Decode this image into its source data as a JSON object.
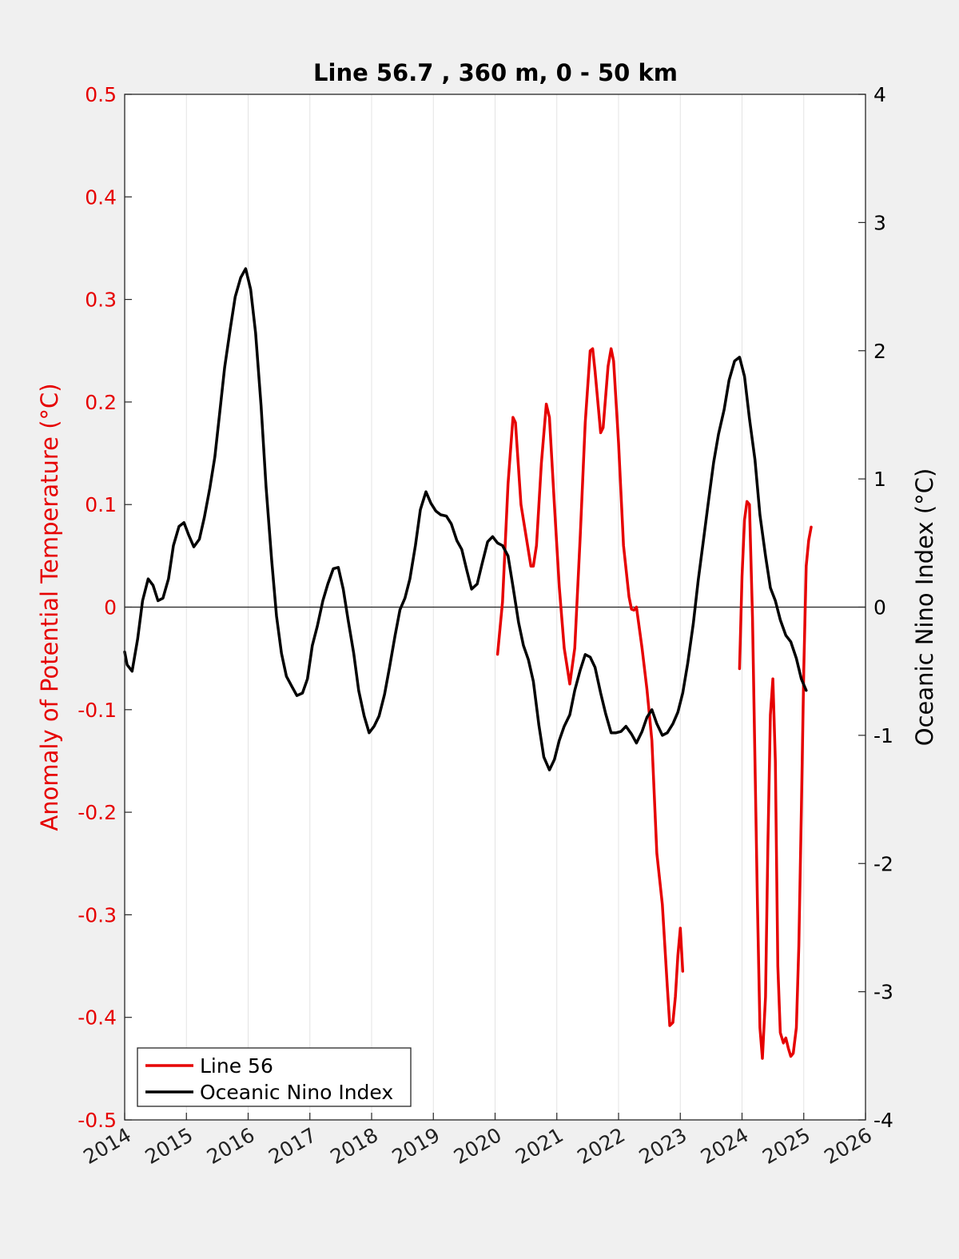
{
  "chart_data": {
    "type": "line",
    "title": "Line 56.7 , 360 m, 0 - 50 km",
    "ylabel_left": "Anomaly of Potential Temperature (°C)",
    "ylabel_right": "Oceanic Nino Index (°C)",
    "xlabel": "",
    "xlim": [
      2014,
      2026
    ],
    "ylim_left": [
      -0.5,
      0.5
    ],
    "ylim_right": [
      -4,
      4
    ],
    "xticks": [
      "2014",
      "2015",
      "2016",
      "2017",
      "2018",
      "2019",
      "2020",
      "2021",
      "2022",
      "2023",
      "2024",
      "2025",
      "2026"
    ],
    "yticks_left": [
      "0.5",
      "0.4",
      "0.3",
      "0.2",
      "0.1",
      "0",
      "-0.1",
      "-0.2",
      "-0.3",
      "-0.4",
      "-0.5"
    ],
    "yticks_right": [
      "4",
      "3",
      "2",
      "1",
      "0",
      "-1",
      "-2",
      "-3",
      "-4"
    ],
    "grid": "vertical",
    "zero_line": true,
    "legend_position": "bottom-left",
    "colors": {
      "line56": "#e60000",
      "oni": "#000000",
      "left_axis": "#e60000",
      "background": "#f0f0f0",
      "plot_bg": "#ffffff"
    },
    "series": [
      {
        "name": "Line 56",
        "axis": "left",
        "segments": [
          [
            [
              2020.04,
              -0.046
            ],
            [
              2020.12,
              0.005
            ],
            [
              2020.21,
              0.12
            ],
            [
              2020.29,
              0.185
            ],
            [
              2020.33,
              0.18
            ],
            [
              2020.42,
              0.1
            ],
            [
              2020.5,
              0.07
            ],
            [
              2020.58,
              0.04
            ],
            [
              2020.62,
              0.04
            ],
            [
              2020.67,
              0.06
            ],
            [
              2020.75,
              0.14
            ],
            [
              2020.83,
              0.198
            ],
            [
              2020.88,
              0.185
            ],
            [
              2020.96,
              0.1
            ],
            [
              2021.04,
              0.02
            ],
            [
              2021.12,
              -0.04
            ],
            [
              2021.21,
              -0.075
            ],
            [
              2021.29,
              -0.04
            ],
            [
              2021.38,
              0.07
            ],
            [
              2021.46,
              0.18
            ],
            [
              2021.54,
              0.25
            ],
            [
              2021.58,
              0.252
            ],
            [
              2021.62,
              0.23
            ],
            [
              2021.71,
              0.17
            ],
            [
              2021.75,
              0.175
            ],
            [
              2021.83,
              0.235
            ],
            [
              2021.88,
              0.252
            ],
            [
              2021.92,
              0.24
            ],
            [
              2022.0,
              0.16
            ],
            [
              2022.08,
              0.06
            ],
            [
              2022.17,
              0.01
            ],
            [
              2022.21,
              -0.002
            ],
            [
              2022.25,
              -0.003
            ],
            [
              2022.29,
              0.0
            ],
            [
              2022.38,
              -0.04
            ],
            [
              2022.46,
              -0.08
            ],
            [
              2022.54,
              -0.13
            ],
            [
              2022.62,
              -0.24
            ],
            [
              2022.71,
              -0.29
            ],
            [
              2022.79,
              -0.37
            ],
            [
              2022.83,
              -0.408
            ],
            [
              2022.88,
              -0.405
            ],
            [
              2022.92,
              -0.38
            ],
            [
              2022.96,
              -0.34
            ],
            [
              2023.0,
              -0.313
            ],
            [
              2023.04,
              -0.355
            ]
          ],
          [
            [
              2023.96,
              -0.06
            ],
            [
              2024.0,
              0.03
            ],
            [
              2024.04,
              0.085
            ],
            [
              2024.08,
              0.103
            ],
            [
              2024.12,
              0.1
            ],
            [
              2024.17,
              -0.01
            ],
            [
              2024.21,
              -0.15
            ],
            [
              2024.25,
              -0.29
            ],
            [
              2024.29,
              -0.41
            ],
            [
              2024.33,
              -0.44
            ],
            [
              2024.38,
              -0.38
            ],
            [
              2024.42,
              -0.23
            ],
            [
              2024.46,
              -0.105
            ],
            [
              2024.5,
              -0.07
            ],
            [
              2024.54,
              -0.15
            ],
            [
              2024.58,
              -0.35
            ],
            [
              2024.62,
              -0.415
            ],
            [
              2024.67,
              -0.425
            ],
            [
              2024.71,
              -0.42
            ],
            [
              2024.75,
              -0.43
            ],
            [
              2024.79,
              -0.438
            ],
            [
              2024.83,
              -0.435
            ],
            [
              2024.88,
              -0.41
            ],
            [
              2024.92,
              -0.33
            ],
            [
              2024.96,
              -0.2
            ],
            [
              2025.0,
              -0.06
            ],
            [
              2025.04,
              0.04
            ],
            [
              2025.08,
              0.065
            ],
            [
              2025.12,
              0.078
            ]
          ]
        ]
      },
      {
        "name": "Oceanic Nino Index",
        "axis": "right",
        "points": [
          [
            2014.0,
            -0.35
          ],
          [
            2014.04,
            -0.45
          ],
          [
            2014.12,
            -0.5
          ],
          [
            2014.21,
            -0.25
          ],
          [
            2014.29,
            0.05
          ],
          [
            2014.38,
            0.22
          ],
          [
            2014.46,
            0.17
          ],
          [
            2014.54,
            0.05
          ],
          [
            2014.62,
            0.07
          ],
          [
            2014.71,
            0.22
          ],
          [
            2014.79,
            0.48
          ],
          [
            2014.88,
            0.63
          ],
          [
            2014.96,
            0.66
          ],
          [
            2015.04,
            0.56
          ],
          [
            2015.12,
            0.47
          ],
          [
            2015.21,
            0.53
          ],
          [
            2015.29,
            0.7
          ],
          [
            2015.38,
            0.93
          ],
          [
            2015.46,
            1.17
          ],
          [
            2015.54,
            1.52
          ],
          [
            2015.62,
            1.87
          ],
          [
            2015.71,
            2.17
          ],
          [
            2015.79,
            2.42
          ],
          [
            2015.88,
            2.57
          ],
          [
            2015.96,
            2.64
          ],
          [
            2016.04,
            2.48
          ],
          [
            2016.12,
            2.14
          ],
          [
            2016.21,
            1.57
          ],
          [
            2016.29,
            0.94
          ],
          [
            2016.38,
            0.37
          ],
          [
            2016.46,
            -0.07
          ],
          [
            2016.54,
            -0.36
          ],
          [
            2016.62,
            -0.54
          ],
          [
            2016.71,
            -0.62
          ],
          [
            2016.79,
            -0.69
          ],
          [
            2016.88,
            -0.67
          ],
          [
            2016.96,
            -0.56
          ],
          [
            2017.04,
            -0.3
          ],
          [
            2017.12,
            -0.15
          ],
          [
            2017.21,
            0.05
          ],
          [
            2017.29,
            0.18
          ],
          [
            2017.38,
            0.3
          ],
          [
            2017.46,
            0.31
          ],
          [
            2017.54,
            0.14
          ],
          [
            2017.62,
            -0.1
          ],
          [
            2017.71,
            -0.36
          ],
          [
            2017.79,
            -0.65
          ],
          [
            2017.88,
            -0.85
          ],
          [
            2017.96,
            -0.98
          ],
          [
            2018.04,
            -0.93
          ],
          [
            2018.12,
            -0.85
          ],
          [
            2018.21,
            -0.68
          ],
          [
            2018.29,
            -0.47
          ],
          [
            2018.38,
            -0.22
          ],
          [
            2018.46,
            -0.02
          ],
          [
            2018.54,
            0.07
          ],
          [
            2018.62,
            0.22
          ],
          [
            2018.71,
            0.48
          ],
          [
            2018.79,
            0.76
          ],
          [
            2018.88,
            0.9
          ],
          [
            2018.96,
            0.81
          ],
          [
            2019.04,
            0.75
          ],
          [
            2019.12,
            0.72
          ],
          [
            2019.21,
            0.71
          ],
          [
            2019.29,
            0.65
          ],
          [
            2019.38,
            0.52
          ],
          [
            2019.46,
            0.45
          ],
          [
            2019.54,
            0.29
          ],
          [
            2019.62,
            0.14
          ],
          [
            2019.71,
            0.18
          ],
          [
            2019.79,
            0.34
          ],
          [
            2019.88,
            0.51
          ],
          [
            2019.96,
            0.55
          ],
          [
            2020.04,
            0.5
          ],
          [
            2020.12,
            0.48
          ],
          [
            2020.21,
            0.4
          ],
          [
            2020.29,
            0.16
          ],
          [
            2020.38,
            -0.12
          ],
          [
            2020.46,
            -0.3
          ],
          [
            2020.54,
            -0.41
          ],
          [
            2020.62,
            -0.58
          ],
          [
            2020.71,
            -0.92
          ],
          [
            2020.79,
            -1.17
          ],
          [
            2020.88,
            -1.27
          ],
          [
            2020.96,
            -1.19
          ],
          [
            2021.04,
            -1.04
          ],
          [
            2021.12,
            -0.93
          ],
          [
            2021.21,
            -0.84
          ],
          [
            2021.29,
            -0.65
          ],
          [
            2021.38,
            -0.49
          ],
          [
            2021.46,
            -0.37
          ],
          [
            2021.54,
            -0.39
          ],
          [
            2021.62,
            -0.47
          ],
          [
            2021.71,
            -0.67
          ],
          [
            2021.79,
            -0.83
          ],
          [
            2021.88,
            -0.98
          ],
          [
            2021.96,
            -0.98
          ],
          [
            2022.04,
            -0.97
          ],
          [
            2022.12,
            -0.93
          ],
          [
            2022.21,
            -0.99
          ],
          [
            2022.29,
            -1.06
          ],
          [
            2022.38,
            -0.97
          ],
          [
            2022.46,
            -0.86
          ],
          [
            2022.54,
            -0.8
          ],
          [
            2022.62,
            -0.91
          ],
          [
            2022.71,
            -1.0
          ],
          [
            2022.79,
            -0.98
          ],
          [
            2022.88,
            -0.91
          ],
          [
            2022.96,
            -0.82
          ],
          [
            2023.04,
            -0.67
          ],
          [
            2023.12,
            -0.44
          ],
          [
            2023.21,
            -0.13
          ],
          [
            2023.29,
            0.21
          ],
          [
            2023.38,
            0.54
          ],
          [
            2023.46,
            0.84
          ],
          [
            2023.54,
            1.13
          ],
          [
            2023.62,
            1.35
          ],
          [
            2023.71,
            1.54
          ],
          [
            2023.79,
            1.77
          ],
          [
            2023.88,
            1.92
          ],
          [
            2023.96,
            1.95
          ],
          [
            2024.04,
            1.8
          ],
          [
            2024.12,
            1.47
          ],
          [
            2024.21,
            1.15
          ],
          [
            2024.29,
            0.72
          ],
          [
            2024.38,
            0.4
          ],
          [
            2024.46,
            0.15
          ],
          [
            2024.54,
            0.05
          ],
          [
            2024.62,
            -0.1
          ],
          [
            2024.71,
            -0.22
          ],
          [
            2024.79,
            -0.27
          ],
          [
            2024.88,
            -0.4
          ],
          [
            2024.96,
            -0.56
          ],
          [
            2025.04,
            -0.65
          ]
        ]
      }
    ]
  }
}
